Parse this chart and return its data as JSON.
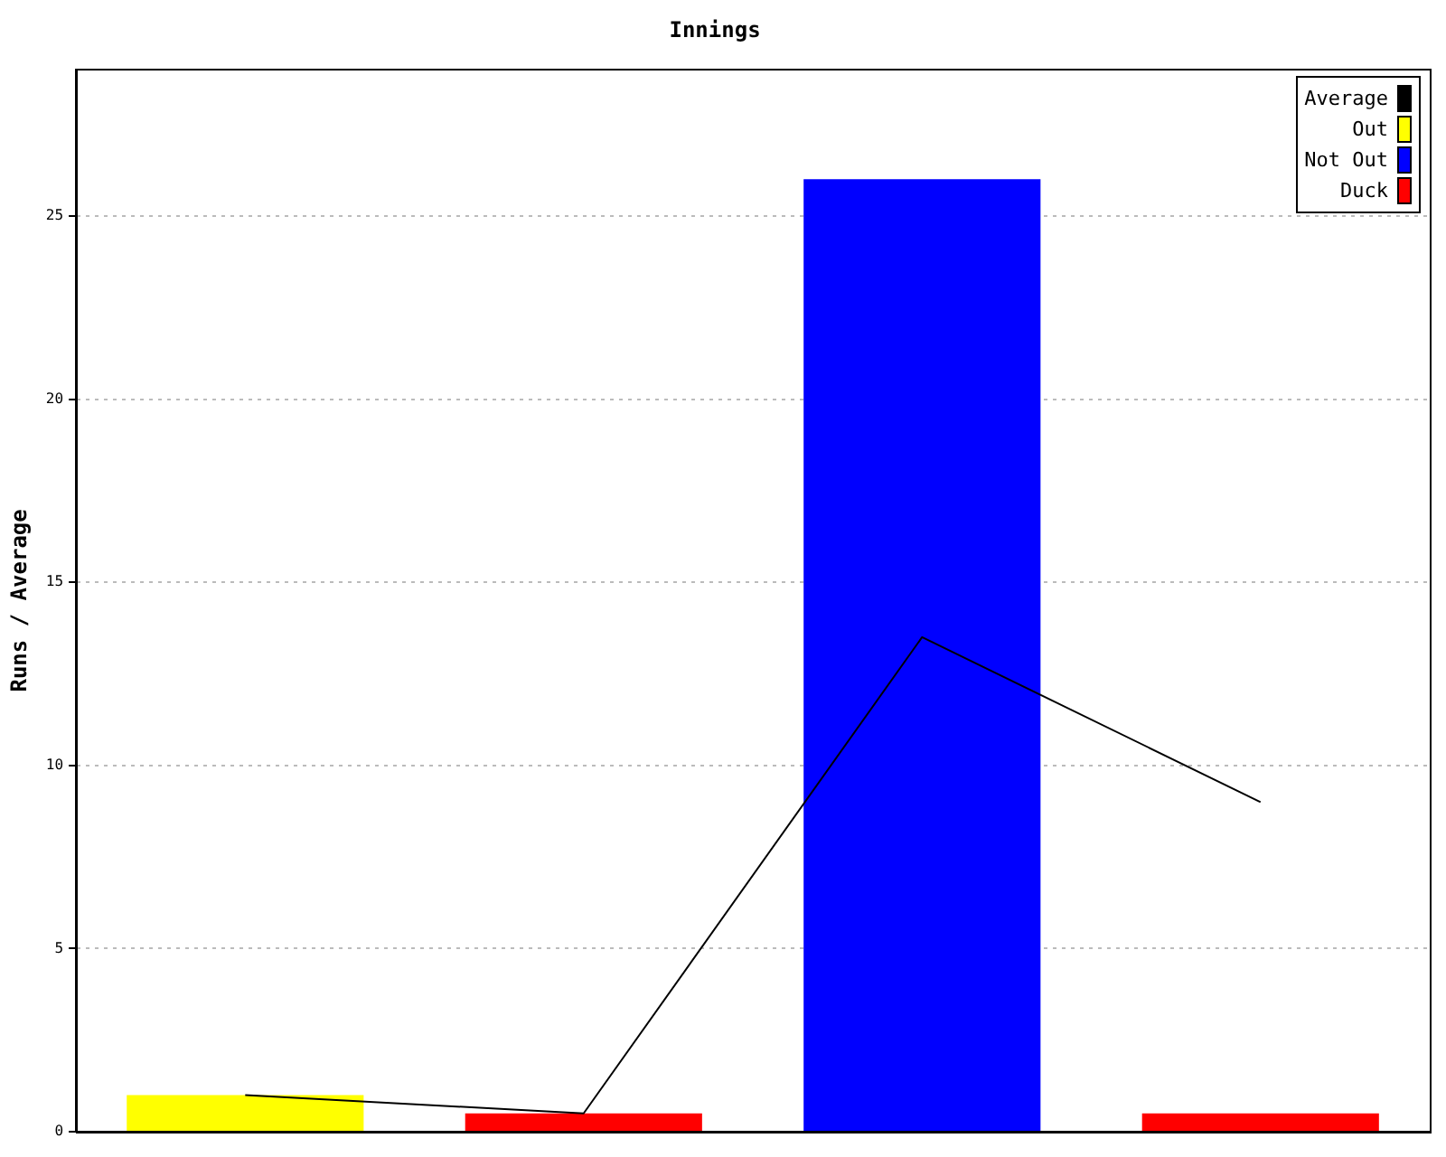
{
  "chart_data": {
    "type": "bar",
    "title": "Innings",
    "ylabel": "Runs / Average",
    "categories": [
      null,
      null,
      null,
      null
    ],
    "ylim": [
      0,
      29
    ],
    "yticks": [
      0,
      5,
      10,
      15,
      20,
      25
    ],
    "grid": "y",
    "legend": "top right",
    "marker": "none",
    "line_style": "solid",
    "series": [
      {
        "name": "Average",
        "type": "line",
        "color": "#000000",
        "values": [
          1,
          0.5,
          13.5,
          9
        ]
      },
      {
        "name": "Out",
        "color": "#ffff00",
        "values": [
          1,
          null,
          null,
          null
        ]
      },
      {
        "name": "Not Out",
        "color": "#0000ff",
        "values": [
          null,
          null,
          26,
          null
        ]
      },
      {
        "name": "Duck",
        "color": "#ff0000",
        "values": [
          null,
          0.5,
          null,
          0.5
        ]
      }
    ]
  }
}
